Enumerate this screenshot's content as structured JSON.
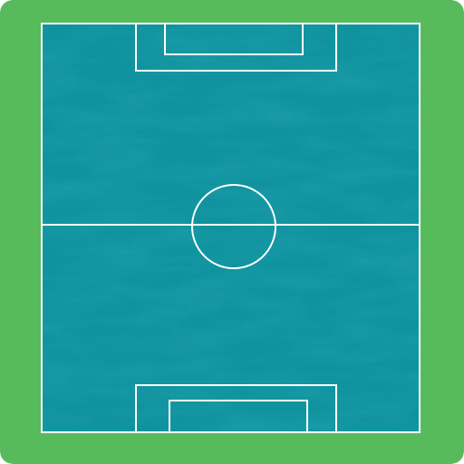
{
  "pitch": {
    "border_color": "#57bb5c",
    "surface_color": "#10939f",
    "texture_color": "#0c8290",
    "line_color": "#ffffff"
  },
  "icons": {
    "field": "soccer-pitch-top-down"
  }
}
